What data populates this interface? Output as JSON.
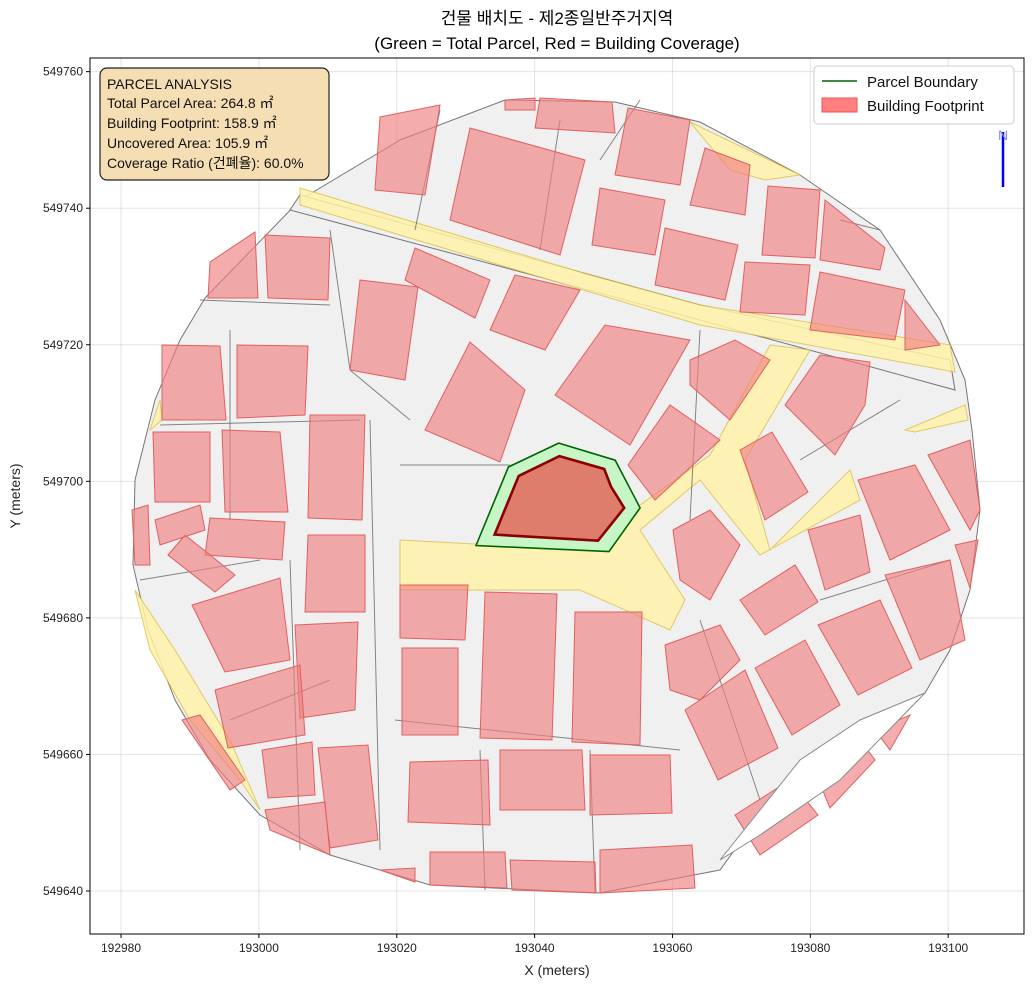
{
  "chart_data": {
    "type": "map",
    "title": "건물 배치도 - 제2종일반주거지역",
    "subtitle": "(Green = Total Parcel, Red = Building Coverage)",
    "xlabel": "X (meters)",
    "ylabel": "Y (meters)",
    "xlim": [
      192975.5,
      193111
    ],
    "ylim": [
      549633.7,
      549762
    ],
    "xticks": [
      "192980",
      "193000",
      "193020",
      "193040",
      "193060",
      "193080",
      "193100"
    ],
    "yticks": [
      "549760",
      "549740",
      "549720",
      "549700",
      "549680",
      "549660",
      "549640"
    ],
    "xtick_values": [
      192980,
      193000,
      193020,
      193040,
      193060,
      193080,
      193100
    ],
    "ytick_values": [
      549760,
      549740,
      549720,
      549700,
      549680,
      549660,
      549640
    ],
    "grid": true,
    "legend_position": "top-right",
    "legend": [
      {
        "label": "Parcel Boundary",
        "color": "#006400"
      },
      {
        "label": "Building Footprint",
        "color": "#ff7f7f"
      }
    ],
    "target_parcel": [
      [
        193031.5,
        549690.6
      ],
      [
        193036.2,
        549702.1
      ],
      [
        193043.5,
        549705.6
      ],
      [
        193051.7,
        549703.1
      ],
      [
        193055.3,
        549696.1
      ],
      [
        193050.8,
        549689.7
      ]
    ],
    "target_building": [
      [
        193034.2,
        549692.2
      ],
      [
        193037.7,
        549700.8
      ],
      [
        193043.6,
        549703.7
      ],
      [
        193050.1,
        549701.8
      ],
      [
        193051.1,
        549699.2
      ],
      [
        193053.0,
        549696.1
      ],
      [
        193049.2,
        549691.3
      ]
    ],
    "north_arrow_label": "N",
    "colors": {
      "parcel_fill": "#c6f5c6",
      "parcel_edge": "#006400",
      "building_fill": "#e07060",
      "building_edge": "#8b0000",
      "info_box": "#f5deb3"
    }
  },
  "info_box": {
    "title": "PARCEL ANALYSIS",
    "lines": [
      "Total Parcel Area: 264.8 ㎡",
      "Building Footprint: 158.9 ㎡",
      "Uncovered Area: 105.9 ㎡",
      "Coverage Ratio (건폐율): 60.0%"
    ]
  }
}
